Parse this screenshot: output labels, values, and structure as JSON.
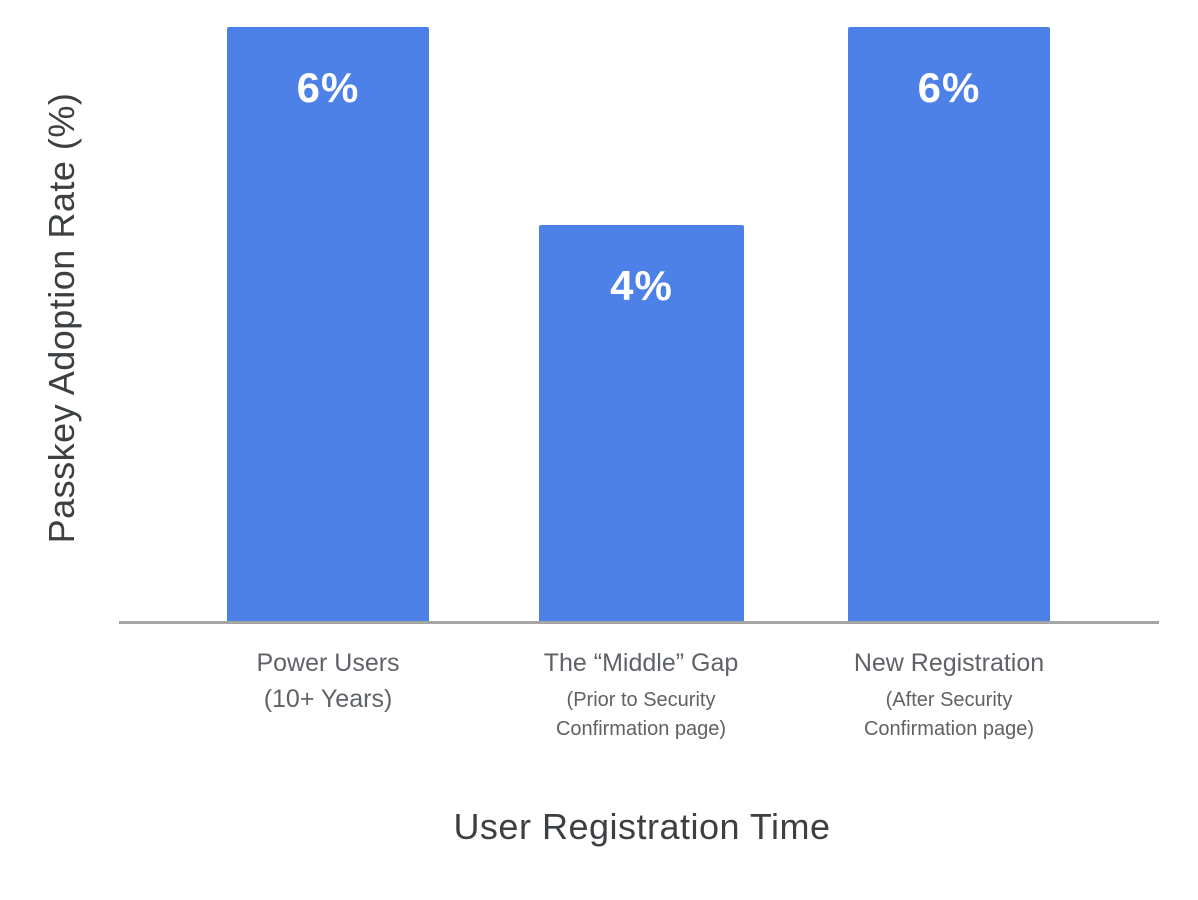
{
  "chart_data": {
    "type": "bar",
    "title": "",
    "xlabel": "User Registration Time",
    "ylabel": "Passkey Adoption Rate (%)",
    "categories": [
      {
        "label": "Power Users\n(10+ Years)",
        "sublabel": ""
      },
      {
        "label": "The “Middle” Gap",
        "sublabel": "(Prior to Security\nConfirmation page)"
      },
      {
        "label": "New Registration",
        "sublabel": "(After Security\nConfirmation page)"
      }
    ],
    "values": [
      6,
      4,
      6
    ],
    "value_labels": [
      "6%",
      "4%",
      "6%"
    ],
    "ylim": [
      0,
      6.3
    ],
    "grid": false,
    "legend": false,
    "bar_color": "#4d81e7",
    "axis_line_color": "#a5a5a5",
    "value_label_color": "#ffffff",
    "category_label_color": "#5f6368",
    "axis_title_color": "#3c4043"
  }
}
